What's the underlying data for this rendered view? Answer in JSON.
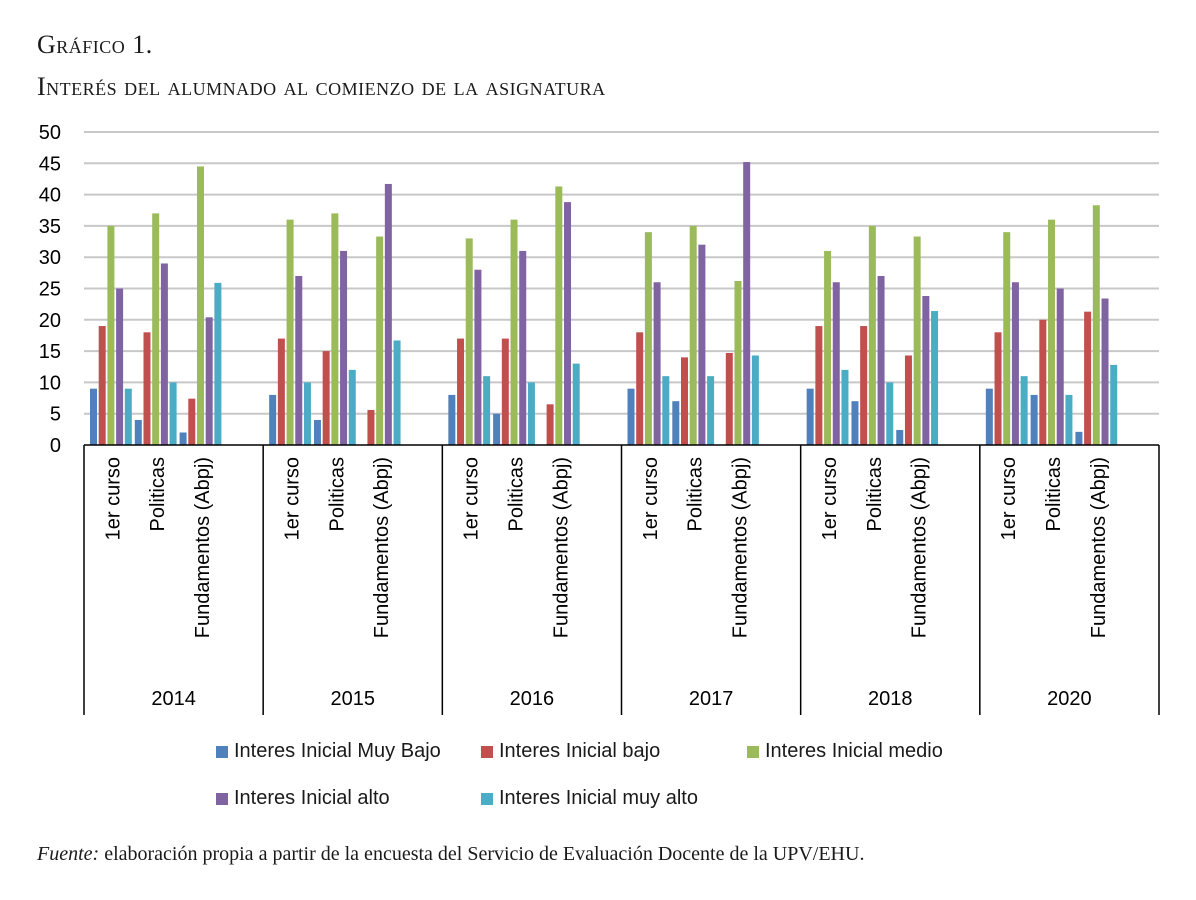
{
  "figure": {
    "label": "Gráfico 1.",
    "title": "Interés del alumnado al comienzo de la asignatura",
    "source_prefix": "Fuente:",
    "source_text": " elaboración propia a partir de la encuesta del Servicio de Evaluación Docente de la UPV/EHU."
  },
  "chart_data": {
    "type": "bar",
    "title": "Interés del alumnado al comienzo de la asignatura",
    "xlabel": "",
    "ylabel": "",
    "ylim": [
      0,
      50
    ],
    "yticks": [
      0,
      5,
      10,
      15,
      20,
      25,
      30,
      35,
      40,
      45,
      50
    ],
    "grid": true,
    "legend_position": "bottom",
    "groups": [
      "2014",
      "2015",
      "2016",
      "2017",
      "2018",
      "2020"
    ],
    "subcategories": [
      "1er curso",
      "Politicas",
      "Fundamentos (Abpj)"
    ],
    "categories": [
      "2014 | 1er curso",
      "2014 | Politicas",
      "2014 | Fundamentos (Abpj)",
      "2015 | 1er curso",
      "2015 | Politicas",
      "2015 | Fundamentos (Abpj)",
      "2016 | 1er curso",
      "2016 | Politicas",
      "2016 | Fundamentos (Abpj)",
      "2017 | 1er curso",
      "2017 | Politicas",
      "2017 | Fundamentos (Abpj)",
      "2018 | 1er curso",
      "2018 | Politicas",
      "2018 | Fundamentos (Abpj)",
      "2020 | 1er curso",
      "2020 | Politicas",
      "2020 | Fundamentos (Abpj)"
    ],
    "series": [
      {
        "name": "Interes Inicial Muy Bajo",
        "color": "#4F81BD",
        "values": [
          9,
          4,
          2,
          8,
          4,
          0,
          8,
          5,
          0,
          9,
          7,
          0,
          9,
          7,
          2.4,
          9,
          8,
          2.1
        ]
      },
      {
        "name": "Interes Inicial bajo",
        "color": "#C0504D",
        "values": [
          19,
          18,
          7.4,
          17,
          15,
          5.6,
          17,
          17,
          6.5,
          18,
          14,
          14.7,
          19,
          19,
          14.3,
          18,
          20,
          21.3
        ]
      },
      {
        "name": "Interes Inicial medio",
        "color": "#9BBB59",
        "values": [
          35,
          37,
          44.5,
          36,
          37,
          33.3,
          33,
          36,
          41.3,
          34,
          35,
          26.2,
          31,
          35,
          33.3,
          34,
          36,
          38.3
        ]
      },
      {
        "name": "Interes Inicial alto",
        "color": "#8064A2",
        "values": [
          25,
          29,
          20.4,
          27,
          31,
          41.7,
          28,
          31,
          38.8,
          26,
          32,
          45.2,
          26,
          27,
          23.8,
          26,
          25,
          23.4
        ]
      },
      {
        "name": "Interes Inicial muy alto",
        "color": "#4BACC6",
        "values": [
          9,
          10,
          25.9,
          10,
          12,
          16.7,
          11,
          10,
          13,
          11,
          11,
          14.3,
          12,
          10,
          21.4,
          11,
          8,
          12.8
        ]
      }
    ]
  }
}
